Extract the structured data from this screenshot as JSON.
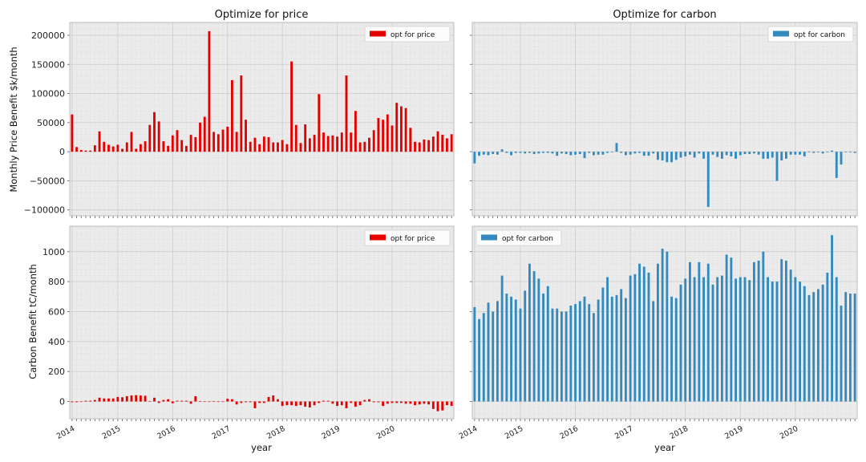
{
  "colors": {
    "price": "#e50000",
    "carbon": "#348abd"
  },
  "x_axis": {
    "label": "year",
    "tick_labels": [
      "2014",
      "2015",
      "2016",
      "2017",
      "2018",
      "2019",
      "2020"
    ]
  },
  "chart_data": [
    {
      "type": "bar",
      "title": "Optimize for price",
      "ylabel": "Monthly Price Benefit $k/month",
      "ylim": [
        -110000,
        222000
      ],
      "yticks": [
        -100000,
        -50000,
        0,
        50000,
        100000,
        150000,
        200000
      ],
      "ytick_labels": [
        "−100000",
        "−50000",
        "0",
        "50000",
        "100000",
        "150000",
        "200000"
      ],
      "legend": {
        "label": "opt for price",
        "position": "top-right"
      },
      "series": [
        {
          "name": "opt for price",
          "color": "#e50000",
          "values": [
            64000,
            8000,
            3000,
            2000,
            2000,
            11000,
            35000,
            17000,
            12000,
            9000,
            12000,
            5000,
            16000,
            34000,
            5000,
            13000,
            18000,
            46000,
            68000,
            52000,
            18000,
            10000,
            28000,
            37000,
            20000,
            10000,
            29000,
            25000,
            50000,
            60000,
            207000,
            34000,
            30000,
            38000,
            43000,
            123000,
            34000,
            131000,
            55000,
            17000,
            24000,
            13000,
            26000,
            25000,
            16000,
            16000,
            20000,
            13000,
            155000,
            46000,
            15000,
            47000,
            23000,
            29000,
            99000,
            33000,
            27000,
            28000,
            26000,
            33000,
            131000,
            33000,
            70000,
            16000,
            17000,
            24000,
            37000,
            58000,
            55000,
            64000,
            45000,
            84000,
            78000,
            75000,
            41000,
            17000,
            16000,
            21000,
            20000,
            26000,
            35000,
            29000,
            23000,
            30000
          ]
        }
      ],
      "x_tick_positions": [
        0,
        10,
        22,
        34,
        46,
        58,
        70
      ]
    },
    {
      "type": "bar",
      "title": "Optimize for carbon",
      "ylabel": "",
      "ylim": [
        -110000,
        222000
      ],
      "yticks": [
        -100000,
        -50000,
        0,
        50000,
        100000,
        150000,
        200000
      ],
      "legend": {
        "label": "opt for carbon",
        "position": "top-right"
      },
      "series": [
        {
          "name": "opt for carbon",
          "color": "#348abd",
          "values": [
            -20000,
            -7000,
            -5000,
            -6000,
            -4000,
            -5000,
            4000,
            -2000,
            -6000,
            -2000,
            -2000,
            -3000,
            -2000,
            -4000,
            -3000,
            -2000,
            -2000,
            -3000,
            -7000,
            -3000,
            -4000,
            -6000,
            -5000,
            -4000,
            -11000,
            -2000,
            -6000,
            -5000,
            -5000,
            -2000,
            -1000,
            15000,
            -2000,
            -6000,
            -5000,
            -3000,
            -2000,
            -7000,
            -7000,
            -3000,
            -14000,
            -15000,
            -18000,
            -18000,
            -14000,
            -10000,
            -8000,
            -5000,
            -10000,
            -3000,
            -12000,
            -95000,
            -5000,
            -9000,
            -12000,
            -6000,
            -8000,
            -12000,
            -6000,
            -4000,
            -4000,
            -3000,
            -5000,
            -12000,
            -12000,
            -10000,
            -50000,
            -15000,
            -12000,
            -5000,
            -5000,
            -5000,
            -8000,
            -1000,
            -2000,
            -1000,
            -3000,
            -1000,
            2000,
            -45000,
            -22000,
            -1000,
            -1000,
            -2000
          ]
        }
      ],
      "x_tick_positions": [
        0,
        10,
        22,
        34,
        46,
        58,
        70
      ]
    },
    {
      "type": "bar",
      "title": "",
      "ylabel": "Carbon Benefit tC/month",
      "ylim": [
        -115,
        1170
      ],
      "yticks": [
        0,
        200,
        400,
        600,
        800,
        1000
      ],
      "ytick_labels": [
        "0",
        "200",
        "400",
        "600",
        "800",
        "1000"
      ],
      "legend": {
        "label": "opt for price",
        "position": "top-right"
      },
      "series": [
        {
          "name": "opt for price",
          "color": "#e50000",
          "values": [
            -5,
            -5,
            -3,
            5,
            5,
            10,
            25,
            20,
            20,
            20,
            30,
            28,
            35,
            40,
            42,
            40,
            38,
            3,
            25,
            -10,
            10,
            15,
            -12,
            5,
            5,
            5,
            -15,
            35,
            3,
            0,
            -3,
            3,
            -2,
            -2,
            18,
            15,
            -20,
            -10,
            -5,
            -5,
            -45,
            -10,
            -10,
            30,
            40,
            15,
            -30,
            -25,
            -25,
            -30,
            -25,
            -35,
            -40,
            -25,
            -10,
            5,
            5,
            -15,
            -30,
            -25,
            -45,
            -10,
            -35,
            -25,
            10,
            15,
            -5,
            -5,
            -30,
            -15,
            -10,
            -10,
            -10,
            -15,
            -15,
            -25,
            -20,
            -15,
            -20,
            -50,
            -65,
            -60,
            -25,
            -30
          ]
        }
      ],
      "x_tick_positions": [
        0,
        10,
        22,
        34,
        46,
        58,
        70
      ]
    },
    {
      "type": "bar",
      "title": "",
      "ylabel": "",
      "ylim": [
        -115,
        1170
      ],
      "yticks": [
        0,
        200,
        400,
        600,
        800,
        1000
      ],
      "legend": {
        "label": "opt for carbon",
        "position": "top-left"
      },
      "series": [
        {
          "name": "opt for carbon",
          "color": "#348abd",
          "values": [
            630,
            550,
            590,
            660,
            600,
            670,
            840,
            720,
            700,
            680,
            620,
            740,
            920,
            870,
            820,
            720,
            770,
            620,
            620,
            600,
            600,
            640,
            650,
            670,
            700,
            650,
            590,
            680,
            760,
            830,
            700,
            710,
            750,
            690,
            840,
            850,
            920,
            900,
            860,
            670,
            920,
            1020,
            1000,
            700,
            690,
            780,
            820,
            930,
            830,
            930,
            830,
            920,
            780,
            830,
            840,
            980,
            960,
            820,
            830,
            830,
            810,
            930,
            940,
            1000,
            830,
            800,
            800,
            950,
            940,
            880,
            830,
            800,
            770,
            710,
            730,
            750,
            780,
            860,
            1110,
            830,
            640,
            730,
            720,
            720
          ]
        }
      ],
      "x_tick_positions": [
        0,
        10,
        22,
        34,
        46,
        58,
        70
      ]
    }
  ]
}
